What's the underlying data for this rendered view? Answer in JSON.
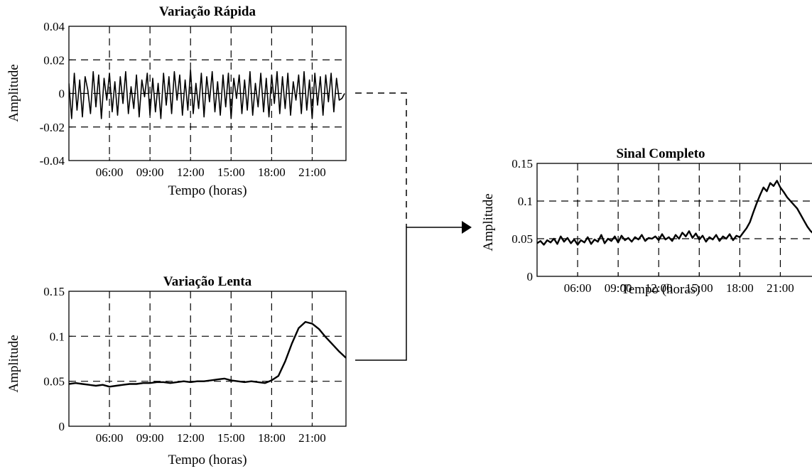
{
  "chart_data": [
    {
      "id": "rapida",
      "type": "line",
      "title": "Variação Rápida",
      "xlabel": "Tempo (horas)",
      "ylabel": "Amplitude",
      "xlim": [
        3.0,
        23.5
      ],
      "ylim": [
        -0.04,
        0.04
      ],
      "xticks": [
        6,
        9,
        12,
        15,
        18,
        21
      ],
      "xtick_labels": [
        "06:00",
        "09:00",
        "12:00",
        "15:00",
        "18:00",
        "21:00"
      ],
      "yticks": [
        -0.04,
        -0.02,
        0,
        0.02,
        0.04
      ],
      "ytick_labels": [
        "-0.04",
        "-0.02",
        "0",
        "0.02",
        "0.04"
      ],
      "grid": true,
      "series": [
        {
          "x": [
            3.0,
            3.2,
            3.4,
            3.6,
            3.8,
            4.0,
            4.2,
            4.4,
            4.6,
            4.8,
            5.0,
            5.2,
            5.4,
            5.6,
            5.8,
            6.0,
            6.2,
            6.4,
            6.6,
            6.8,
            7.0,
            7.2,
            7.4,
            7.6,
            7.8,
            8.0,
            8.2,
            8.4,
            8.6,
            8.8,
            9.0,
            9.2,
            9.4,
            9.6,
            9.8,
            10.0,
            10.2,
            10.4,
            10.6,
            10.8,
            11.0,
            11.2,
            11.4,
            11.6,
            11.8,
            12.0,
            12.2,
            12.4,
            12.6,
            12.8,
            13.0,
            13.2,
            13.4,
            13.6,
            13.8,
            14.0,
            14.2,
            14.4,
            14.6,
            14.8,
            15.0,
            15.2,
            15.4,
            15.6,
            15.8,
            16.0,
            16.2,
            16.4,
            16.6,
            16.8,
            17.0,
            17.2,
            17.4,
            17.6,
            17.8,
            18.0,
            18.2,
            18.4,
            18.6,
            18.8,
            19.0,
            19.2,
            19.4,
            19.6,
            19.8,
            20.0,
            20.2,
            20.4,
            20.6,
            20.8,
            21.0,
            21.2,
            21.4,
            21.6,
            21.8,
            22.0,
            22.2,
            22.4,
            22.6,
            22.8,
            23.0,
            23.2,
            23.4
          ],
          "y": [
            0.006,
            -0.015,
            0.012,
            -0.01,
            0.008,
            -0.014,
            0.01,
            0.002,
            -0.012,
            0.013,
            -0.008,
            0.011,
            -0.015,
            0.009,
            -0.004,
            0.012,
            -0.011,
            0.007,
            -0.013,
            0.01,
            -0.006,
            0.013,
            -0.012,
            0.004,
            -0.009,
            0.011,
            -0.014,
            0.008,
            -0.002,
            0.012,
            -0.013,
            0.009,
            -0.011,
            0.006,
            -0.015,
            0.012,
            -0.007,
            0.01,
            -0.012,
            0.013,
            -0.004,
            0.011,
            -0.013,
            0.008,
            -0.01,
            0.014,
            -0.012,
            0.006,
            -0.009,
            0.012,
            -0.014,
            0.01,
            -0.005,
            0.013,
            -0.011,
            0.007,
            -0.013,
            0.011,
            -0.008,
            0.012,
            -0.015,
            0.009,
            -0.003,
            0.011,
            -0.012,
            0.008,
            -0.01,
            0.013,
            -0.013,
            0.006,
            -0.008,
            0.012,
            -0.011,
            0.009,
            -0.014,
            0.011,
            -0.006,
            0.013,
            -0.012,
            0.01,
            -0.009,
            0.012,
            -0.013,
            0.007,
            -0.004,
            0.011,
            -0.012,
            0.013,
            -0.01,
            0.008,
            -0.015,
            0.012,
            -0.007,
            0.01,
            -0.013,
            0.011,
            -0.005,
            0.012,
            -0.011,
            0.009,
            -0.004,
            -0.003,
            0.0
          ],
          "stroke_width": 1.6
        }
      ]
    },
    {
      "id": "lenta",
      "type": "line",
      "title": "Variação Lenta",
      "xlabel": "Tempo (horas)",
      "ylabel": "Amplitude",
      "xlim": [
        3.0,
        23.5
      ],
      "ylim": [
        0,
        0.15
      ],
      "xticks": [
        6,
        9,
        12,
        15,
        18,
        21
      ],
      "xtick_labels": [
        "06:00",
        "09:00",
        "12:00",
        "15:00",
        "18:00",
        "21:00"
      ],
      "yticks": [
        0,
        0.05,
        0.1,
        0.15
      ],
      "ytick_labels": [
        "0",
        "0.05",
        "0.1",
        "0.15"
      ],
      "grid": true,
      "series": [
        {
          "x": [
            3.0,
            3.5,
            4.0,
            4.5,
            5.0,
            5.5,
            6.0,
            6.5,
            7.0,
            7.5,
            8.0,
            8.5,
            9.0,
            9.5,
            10.0,
            10.5,
            11.0,
            11.5,
            12.0,
            12.5,
            13.0,
            13.5,
            14.0,
            14.5,
            15.0,
            15.5,
            16.0,
            16.5,
            17.0,
            17.5,
            18.0,
            18.5,
            19.0,
            19.5,
            20.0,
            20.5,
            21.0,
            21.5,
            22.0,
            22.5,
            23.0,
            23.5
          ],
          "y": [
            0.047,
            0.048,
            0.047,
            0.046,
            0.045,
            0.046,
            0.044,
            0.045,
            0.046,
            0.047,
            0.047,
            0.048,
            0.048,
            0.049,
            0.049,
            0.048,
            0.049,
            0.05,
            0.049,
            0.05,
            0.05,
            0.051,
            0.052,
            0.053,
            0.051,
            0.05,
            0.049,
            0.05,
            0.049,
            0.048,
            0.051,
            0.056,
            0.072,
            0.092,
            0.109,
            0.116,
            0.114,
            0.108,
            0.099,
            0.091,
            0.083,
            0.076
          ],
          "stroke_width": 2.4
        }
      ]
    },
    {
      "id": "completo",
      "type": "line",
      "title": "Sinal Completo",
      "xlabel": "Tempo (horas)",
      "ylabel": "Amplitude",
      "xlim": [
        3.0,
        23.5
      ],
      "ylim": [
        0,
        0.15
      ],
      "xticks": [
        6,
        9,
        12,
        15,
        18,
        21
      ],
      "xtick_labels": [
        "06:00",
        "09:00",
        "12:00",
        "15:00",
        "18:00",
        "21:00"
      ],
      "yticks": [
        0,
        0.05,
        0.1,
        0.15
      ],
      "ytick_labels": [
        "0",
        "0.05",
        "0.1",
        "0.15"
      ],
      "grid": true,
      "series": [
        {
          "x": [
            3.0,
            3.25,
            3.5,
            3.75,
            4.0,
            4.25,
            4.5,
            4.75,
            5.0,
            5.25,
            5.5,
            5.75,
            6.0,
            6.25,
            6.5,
            6.75,
            7.0,
            7.25,
            7.5,
            7.75,
            8.0,
            8.25,
            8.5,
            8.75,
            9.0,
            9.25,
            9.5,
            9.75,
            10.0,
            10.25,
            10.5,
            10.75,
            11.0,
            11.25,
            11.5,
            11.75,
            12.0,
            12.25,
            12.5,
            12.75,
            13.0,
            13.25,
            13.5,
            13.75,
            14.0,
            14.25,
            14.5,
            14.75,
            15.0,
            15.25,
            15.5,
            15.75,
            16.0,
            16.25,
            16.5,
            16.75,
            17.0,
            17.25,
            17.5,
            17.75,
            18.0,
            18.25,
            18.5,
            18.75,
            19.0,
            19.25,
            19.5,
            19.75,
            20.0,
            20.25,
            20.5,
            20.75,
            21.0,
            21.25,
            21.5,
            21.75,
            22.0,
            22.25,
            22.5,
            22.75,
            23.0,
            23.25,
            23.5
          ],
          "y": [
            0.044,
            0.047,
            0.042,
            0.048,
            0.045,
            0.05,
            0.043,
            0.053,
            0.046,
            0.051,
            0.044,
            0.049,
            0.042,
            0.048,
            0.045,
            0.052,
            0.043,
            0.049,
            0.046,
            0.055,
            0.044,
            0.05,
            0.047,
            0.053,
            0.045,
            0.054,
            0.048,
            0.051,
            0.046,
            0.052,
            0.049,
            0.055,
            0.047,
            0.051,
            0.05,
            0.053,
            0.048,
            0.056,
            0.049,
            0.052,
            0.047,
            0.055,
            0.05,
            0.058,
            0.053,
            0.06,
            0.051,
            0.057,
            0.049,
            0.054,
            0.046,
            0.052,
            0.049,
            0.055,
            0.047,
            0.053,
            0.05,
            0.056,
            0.048,
            0.054,
            0.052,
            0.058,
            0.064,
            0.072,
            0.085,
            0.097,
            0.108,
            0.118,
            0.113,
            0.124,
            0.12,
            0.127,
            0.118,
            0.112,
            0.105,
            0.1,
            0.095,
            0.09,
            0.082,
            0.074,
            0.066,
            0.06,
            0.056
          ],
          "stroke_width": 2.4
        }
      ]
    }
  ]
}
